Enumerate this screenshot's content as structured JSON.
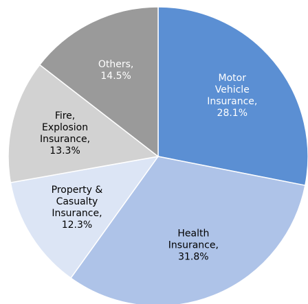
{
  "chart_data": {
    "type": "pie",
    "categories": [
      "Motor Vehicle Insurance,",
      "Health Insurance,",
      "Property & Casualty Insurance,",
      "Fire, Explosion Insurance,",
      "Others,"
    ],
    "values": [
      28.1,
      31.8,
      12.3,
      13.3,
      14.5
    ],
    "value_labels": [
      "28.1%",
      "31.8%",
      "12.3%",
      "13.3%",
      "14.5%"
    ],
    "colors": [
      "#5b8fd3",
      "#aec3e8",
      "#dce5f5",
      "#d2d2d2",
      "#9a9a9a"
    ],
    "label_colors": [
      "#ffffff",
      "#000000",
      "#000000",
      "#000000",
      "#ffffff"
    ]
  }
}
